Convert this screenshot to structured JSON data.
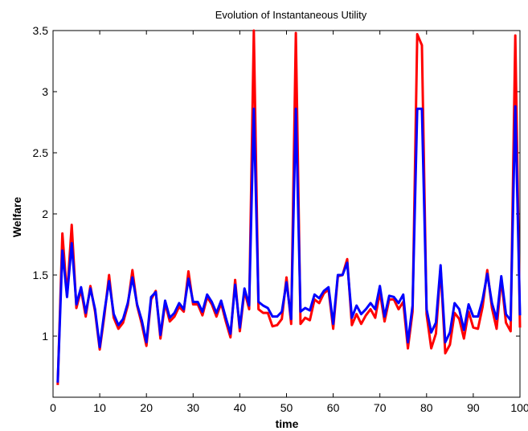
{
  "chart_data": {
    "type": "line",
    "title": "Evolution of Instantaneous Utility",
    "xlabel": "time",
    "ylabel": "Welfare",
    "xlim": [
      0,
      100
    ],
    "ylim": [
      0.5,
      3.5
    ],
    "xticks": [
      0,
      10,
      20,
      30,
      40,
      50,
      60,
      70,
      80,
      90,
      100
    ],
    "yticks": [
      1,
      1.5,
      2,
      2.5,
      3,
      3.5
    ],
    "grid": false,
    "legend": "none",
    "x": [
      1,
      2,
      3,
      4,
      5,
      6,
      7,
      8,
      9,
      10,
      11,
      12,
      13,
      14,
      15,
      16,
      17,
      18,
      19,
      20,
      21,
      22,
      23,
      24,
      25,
      26,
      27,
      28,
      29,
      30,
      31,
      32,
      33,
      34,
      35,
      36,
      37,
      38,
      39,
      40,
      41,
      42,
      43,
      44,
      45,
      46,
      47,
      48,
      49,
      50,
      51,
      52,
      53,
      54,
      55,
      56,
      57,
      58,
      59,
      60,
      61,
      62,
      63,
      64,
      65,
      66,
      67,
      68,
      69,
      70,
      71,
      72,
      73,
      74,
      75,
      76,
      77,
      78,
      79,
      80,
      81,
      82,
      83,
      84,
      85,
      86,
      87,
      88,
      89,
      90,
      91,
      92,
      93,
      94,
      95,
      96,
      97,
      98,
      99,
      100
    ],
    "series": [
      {
        "color": "#ff0000",
        "values": [
          0.6,
          1.84,
          1.33,
          1.91,
          1.23,
          1.38,
          1.16,
          1.41,
          1.2,
          0.89,
          1.17,
          1.5,
          1.15,
          1.06,
          1.11,
          1.25,
          1.54,
          1.25,
          1.1,
          0.92,
          1.3,
          1.37,
          0.98,
          1.27,
          1.12,
          1.16,
          1.24,
          1.2,
          1.53,
          1.26,
          1.26,
          1.17,
          1.32,
          1.26,
          1.16,
          1.27,
          1.12,
          0.99,
          1.46,
          1.04,
          1.37,
          1.22,
          3.5,
          1.22,
          1.19,
          1.19,
          1.08,
          1.09,
          1.14,
          1.48,
          1.1,
          3.48,
          1.1,
          1.15,
          1.13,
          1.3,
          1.27,
          1.35,
          1.38,
          1.06,
          1.49,
          1.5,
          1.63,
          1.09,
          1.18,
          1.1,
          1.17,
          1.22,
          1.15,
          1.36,
          1.12,
          1.3,
          1.3,
          1.22,
          1.28,
          0.9,
          1.2,
          3.47,
          3.38,
          1.18,
          0.9,
          1.02,
          1.56,
          0.86,
          0.93,
          1.19,
          1.14,
          0.98,
          1.2,
          1.07,
          1.06,
          1.24,
          1.54,
          1.23,
          1.06,
          1.47,
          1.11,
          1.04,
          3.46,
          1.07
        ]
      },
      {
        "color": "#0000ff",
        "values": [
          0.62,
          1.7,
          1.32,
          1.76,
          1.26,
          1.4,
          1.19,
          1.39,
          1.22,
          0.91,
          1.2,
          1.45,
          1.18,
          1.09,
          1.14,
          1.27,
          1.48,
          1.26,
          1.13,
          0.95,
          1.32,
          1.36,
          1.01,
          1.29,
          1.15,
          1.19,
          1.27,
          1.22,
          1.47,
          1.28,
          1.28,
          1.2,
          1.34,
          1.28,
          1.19,
          1.29,
          1.15,
          1.02,
          1.42,
          1.07,
          1.39,
          1.25,
          2.86,
          1.28,
          1.25,
          1.23,
          1.16,
          1.16,
          1.2,
          1.44,
          1.14,
          2.86,
          1.2,
          1.23,
          1.21,
          1.34,
          1.31,
          1.37,
          1.4,
          1.1,
          1.5,
          1.5,
          1.6,
          1.15,
          1.25,
          1.18,
          1.22,
          1.27,
          1.22,
          1.41,
          1.16,
          1.33,
          1.32,
          1.27,
          1.34,
          0.95,
          1.25,
          2.86,
          2.86,
          1.22,
          1.03,
          1.11,
          1.58,
          0.95,
          1.03,
          1.27,
          1.22,
          1.05,
          1.26,
          1.16,
          1.16,
          1.3,
          1.51,
          1.27,
          1.14,
          1.49,
          1.18,
          1.13,
          2.88,
          1.17
        ]
      }
    ]
  }
}
